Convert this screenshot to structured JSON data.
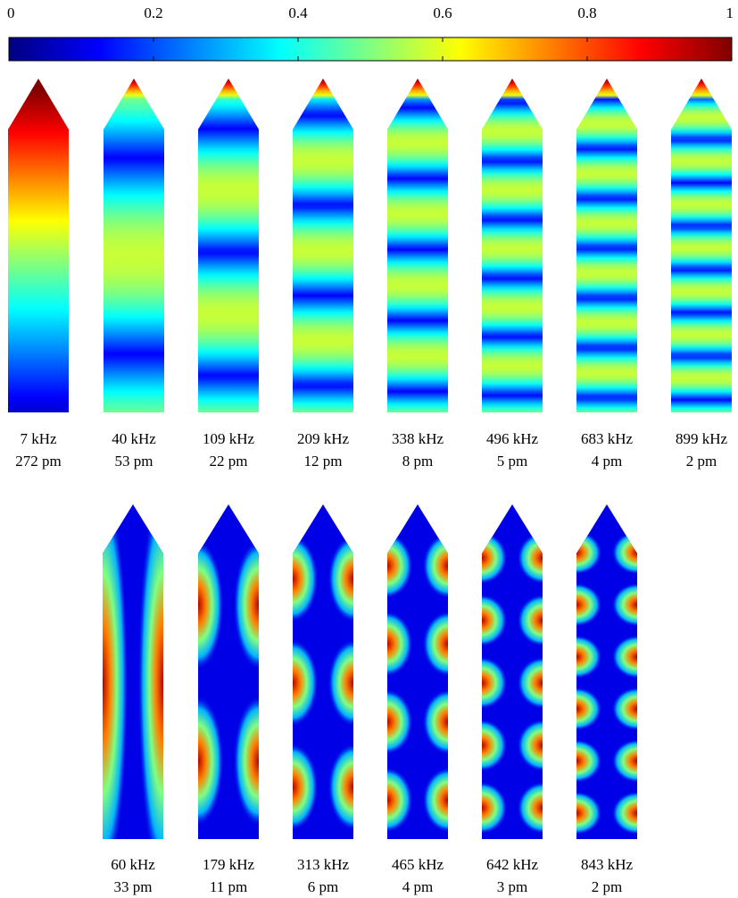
{
  "colorbar": {
    "lim": [
      0,
      1
    ],
    "ticks": [
      0,
      0.2,
      0.4,
      0.6,
      0.8,
      1
    ]
  },
  "rows": [
    {
      "panels": [
        {
          "frequency": "7 kHz",
          "amplitude": "272 pm"
        },
        {
          "frequency": "40 kHz",
          "amplitude": "53 pm"
        },
        {
          "frequency": "109 kHz",
          "amplitude": "22 pm"
        },
        {
          "frequency": "209 kHz",
          "amplitude": "12 pm"
        },
        {
          "frequency": "338 kHz",
          "amplitude": "8 pm"
        },
        {
          "frequency": "496 kHz",
          "amplitude": "5 pm"
        },
        {
          "frequency": "683 kHz",
          "amplitude": "4 pm"
        },
        {
          "frequency": "899 kHz",
          "amplitude": "2 pm"
        }
      ]
    },
    {
      "panels": [
        {
          "frequency": "60 kHz",
          "amplitude": "33 pm"
        },
        {
          "frequency": "179 kHz",
          "amplitude": "11 pm"
        },
        {
          "frequency": "313 kHz",
          "amplitude": "6 pm"
        },
        {
          "frequency": "465 kHz",
          "amplitude": "4 pm"
        },
        {
          "frequency": "642 kHz",
          "amplitude": "3 pm"
        },
        {
          "frequency": "843 kHz",
          "amplitude": "2 pm"
        }
      ]
    }
  ]
}
